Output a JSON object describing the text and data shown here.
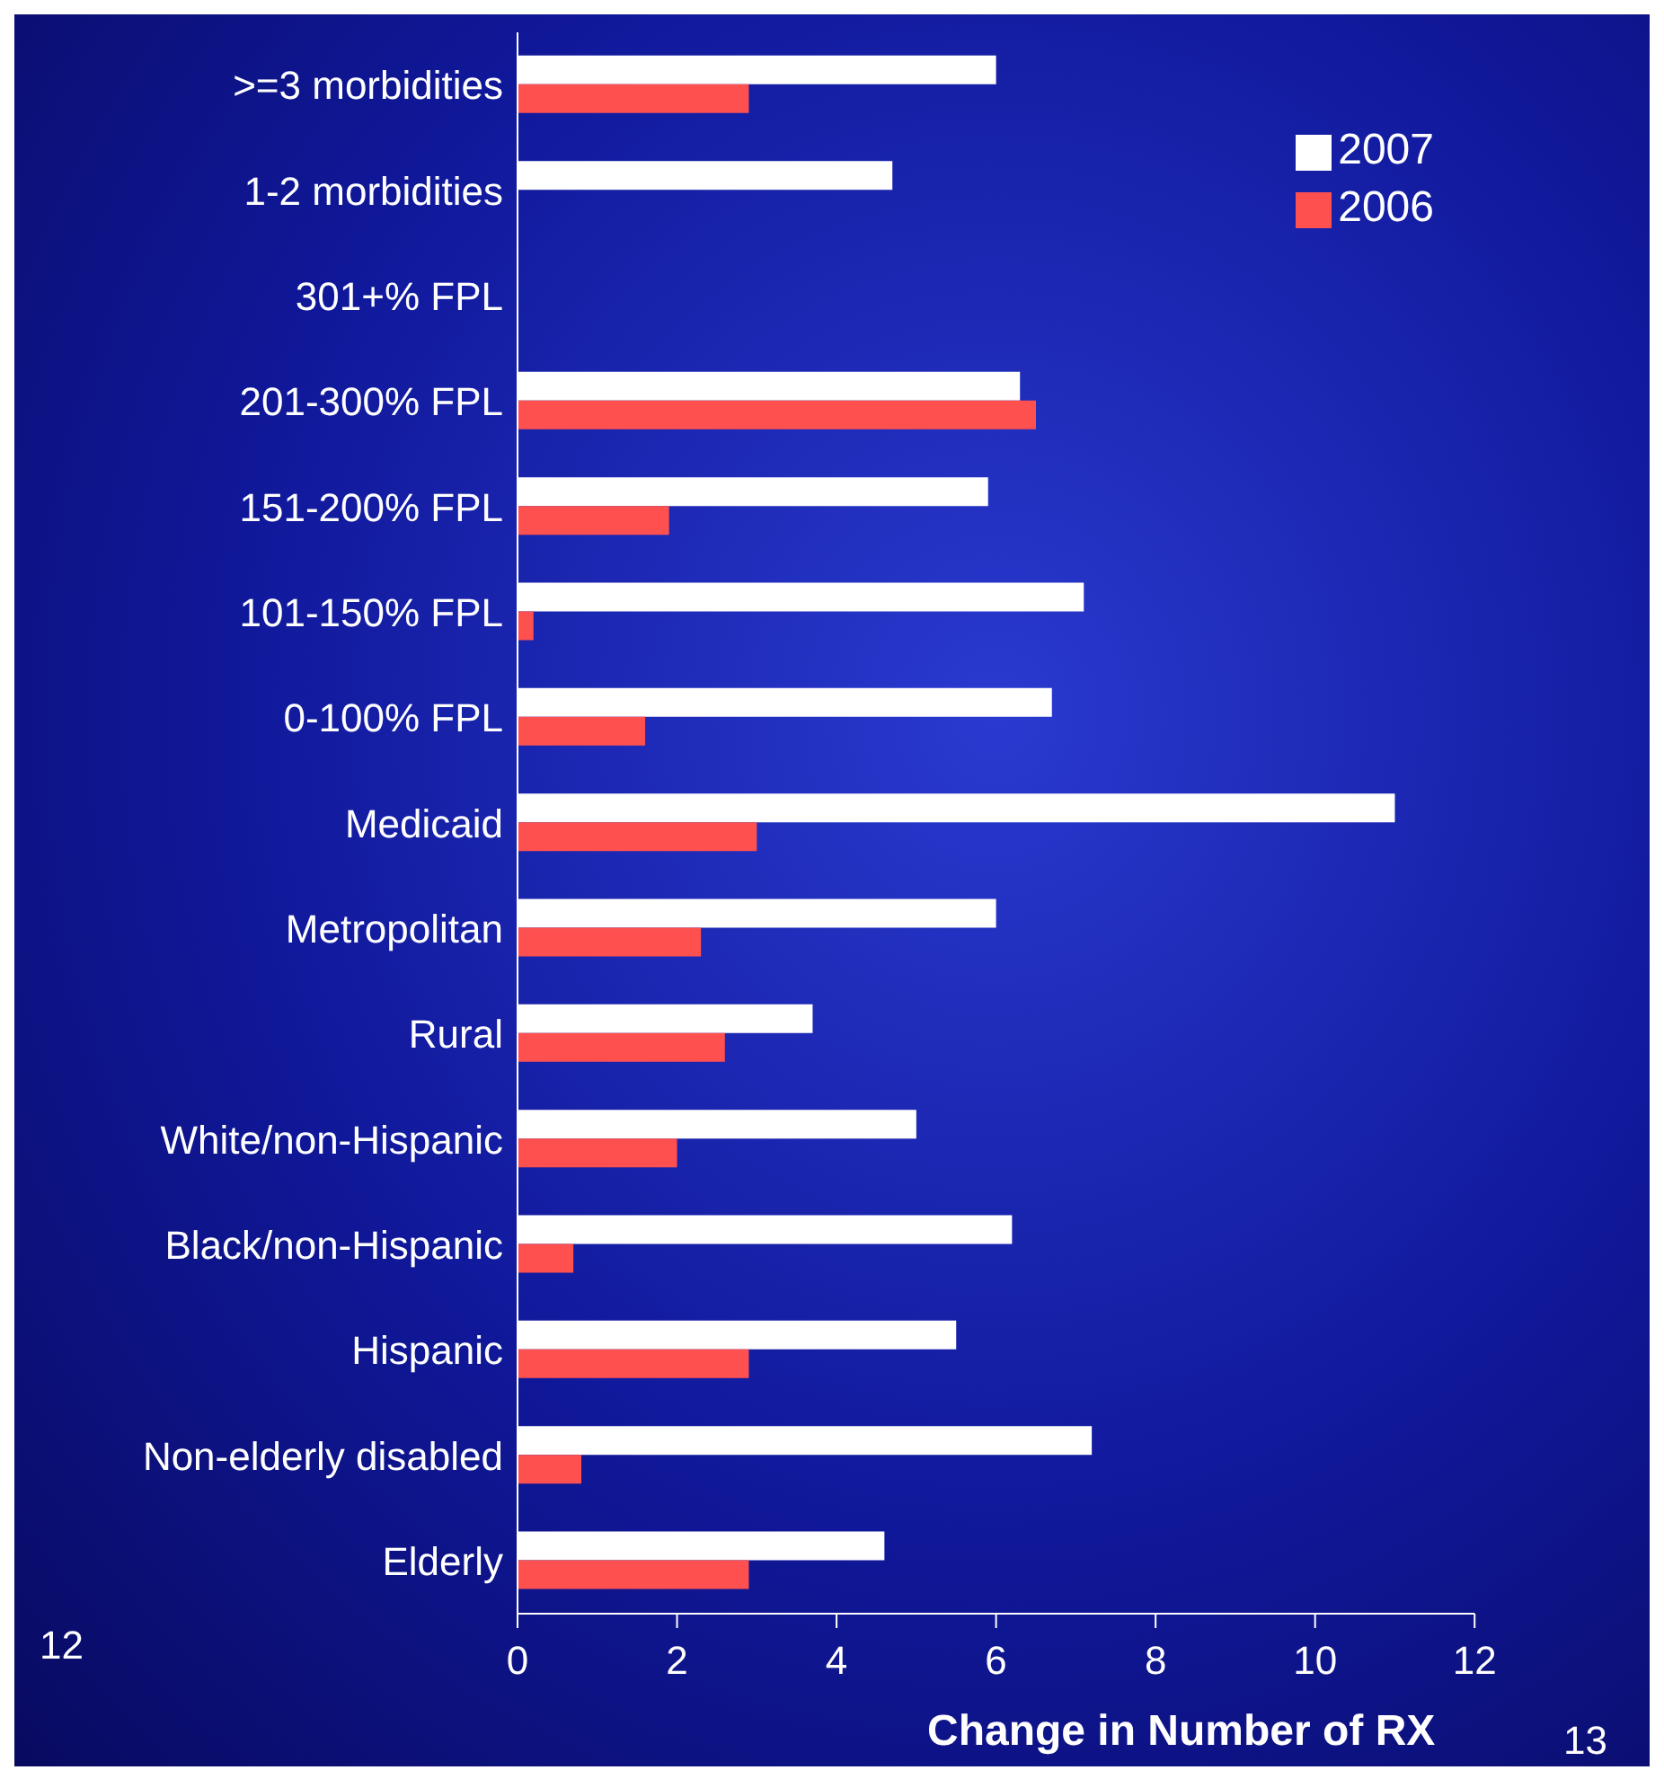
{
  "chart_data": {
    "type": "bar",
    "orientation": "horizontal",
    "xlabel": "Change in Number of RX",
    "categories": [
      ">=3 morbidities",
      "1-2 morbidities",
      "301+% FPL",
      "201-300% FPL",
      "151-200% FPL",
      "101-150% FPL ",
      "0-100% FPL",
      "Medicaid",
      "Metropolitan",
      "Rural",
      "White/non-Hispanic",
      "Black/non-Hispanic",
      "Hispanic",
      "Non-elderly disabled",
      "Elderly"
    ],
    "series": [
      {
        "name": "2007",
        "color": "#ffffff",
        "values": [
          6.0,
          4.7,
          null,
          6.3,
          5.9,
          7.1,
          6.7,
          11.0,
          6.0,
          3.7,
          5.0,
          6.2,
          5.5,
          7.2,
          4.6
        ]
      },
      {
        "name": "2006",
        "color": "#ff5050",
        "values": [
          2.9,
          null,
          null,
          6.5,
          1.9,
          0.2,
          1.6,
          3.0,
          2.3,
          2.6,
          2.0,
          0.7,
          2.9,
          0.8,
          2.9
        ]
      }
    ],
    "xlim": [
      0,
      12
    ],
    "xticks": [
      0,
      2,
      4,
      6,
      8,
      10,
      12
    ],
    "grid": false,
    "legend": "top right",
    "annotations": [
      "12",
      "13"
    ]
  }
}
